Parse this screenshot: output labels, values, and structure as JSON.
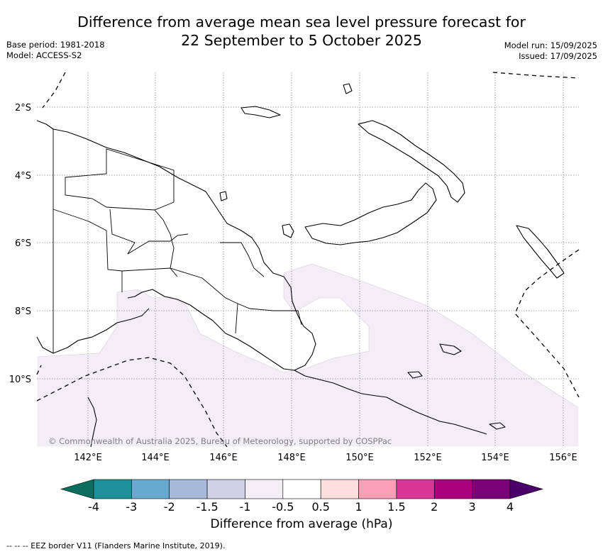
{
  "title_line1": "Difference from average mean sea level pressure forecast for",
  "title_line2": "22 September to 5 October 2025",
  "base_period": "Base period: 1981-2018",
  "model": "Model: ACCESS-S2",
  "model_run": "Model run: 15/09/2025",
  "issued": "Issued: 17/09/2025",
  "copyright": "© Commonwealth of Australia 2025, Bureau of Meteorology, supported by COSPPac",
  "lon_ticks": [
    "142°E",
    "144°E",
    "146°E",
    "148°E",
    "150°E",
    "152°E",
    "154°E",
    "156°E"
  ],
  "lat_ticks": [
    "2°S",
    "4°S",
    "6°S",
    "8°S",
    "10°S"
  ],
  "colorbar": {
    "label": "Difference from average (hPa)",
    "ticks": [
      "-4",
      "-3",
      "-2",
      "-1.5",
      "-1",
      "-0.5",
      "0.5",
      "1",
      "1.5",
      "2",
      "3",
      "4"
    ],
    "colors": [
      "#0b6e5e",
      "#1d9099",
      "#67a9cf",
      "#a6b9da",
      "#d0d1e6",
      "#f3eef6",
      "#ffffff",
      "#fde0dd",
      "#fa9fb5",
      "#dd3497",
      "#ae017e",
      "#7a0177",
      "#49006a"
    ]
  },
  "footnote": "--  --  -- EEZ border V11 (Flanders Marine Institute, 2019).",
  "colors": {
    "anomaly_shading": "#f3eef6",
    "land_outline": "#000000",
    "gridline": "#888888"
  },
  "chart_data": {
    "type": "map",
    "region": "Papua New Guinea",
    "lon_range": [
      140.6,
      156.5
    ],
    "lat_range": [
      -12.0,
      -1.0
    ],
    "field": "MSLP anomaly (hPa)",
    "shaded_category": "-1 to -0.5",
    "shaded_area": "south-east of mainland, Coral Sea and Solomon Sea",
    "remaining_area": "-0.5 to 0.5 (white)",
    "gridlines": true
  }
}
